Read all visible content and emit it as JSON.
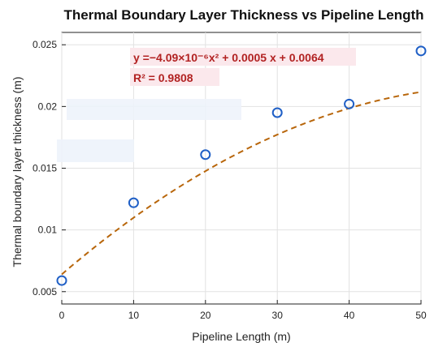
{
  "chart_data": {
    "type": "scatter",
    "title": "Thermal Boundary Layer Thickness vs Pipeline Length",
    "xlabel": "Pipeline Length (m)",
    "ylabel": "Thermal boundary layer thickness (m)",
    "xlim": [
      0,
      50
    ],
    "ylim": [
      0.004,
      0.026
    ],
    "x_ticks": [
      0,
      10,
      20,
      30,
      40,
      50
    ],
    "x_tick_labels": [
      "0",
      "10",
      "20",
      "30",
      "40",
      "50"
    ],
    "y_ticks": [
      0.005,
      0.01,
      0.015,
      0.02,
      0.025
    ],
    "y_tick_labels": [
      "0.005",
      "0.01",
      "0.015",
      "0.02",
      "0.025"
    ],
    "grid": true,
    "series": [
      {
        "kind": "points",
        "marker": "open-circle",
        "color": "#1f5fc6",
        "x": [
          0,
          10,
          20,
          30,
          40,
          50
        ],
        "y": [
          0.0059,
          0.0122,
          0.0161,
          0.0195,
          0.0202,
          0.0245
        ]
      },
      {
        "kind": "fit-line",
        "style": "dashed",
        "color": "#b8660b",
        "coefficients": {
          "a": -4.09e-06,
          "b": 0.0005,
          "c": 0.0064
        }
      }
    ],
    "annotations": {
      "equation": "y =−4.09×10⁻⁶x² + 0.0005 x + 0.0064",
      "r_squared": "R² = 0.9808",
      "color": "#b22222",
      "background": "#fbe8ec"
    }
  }
}
